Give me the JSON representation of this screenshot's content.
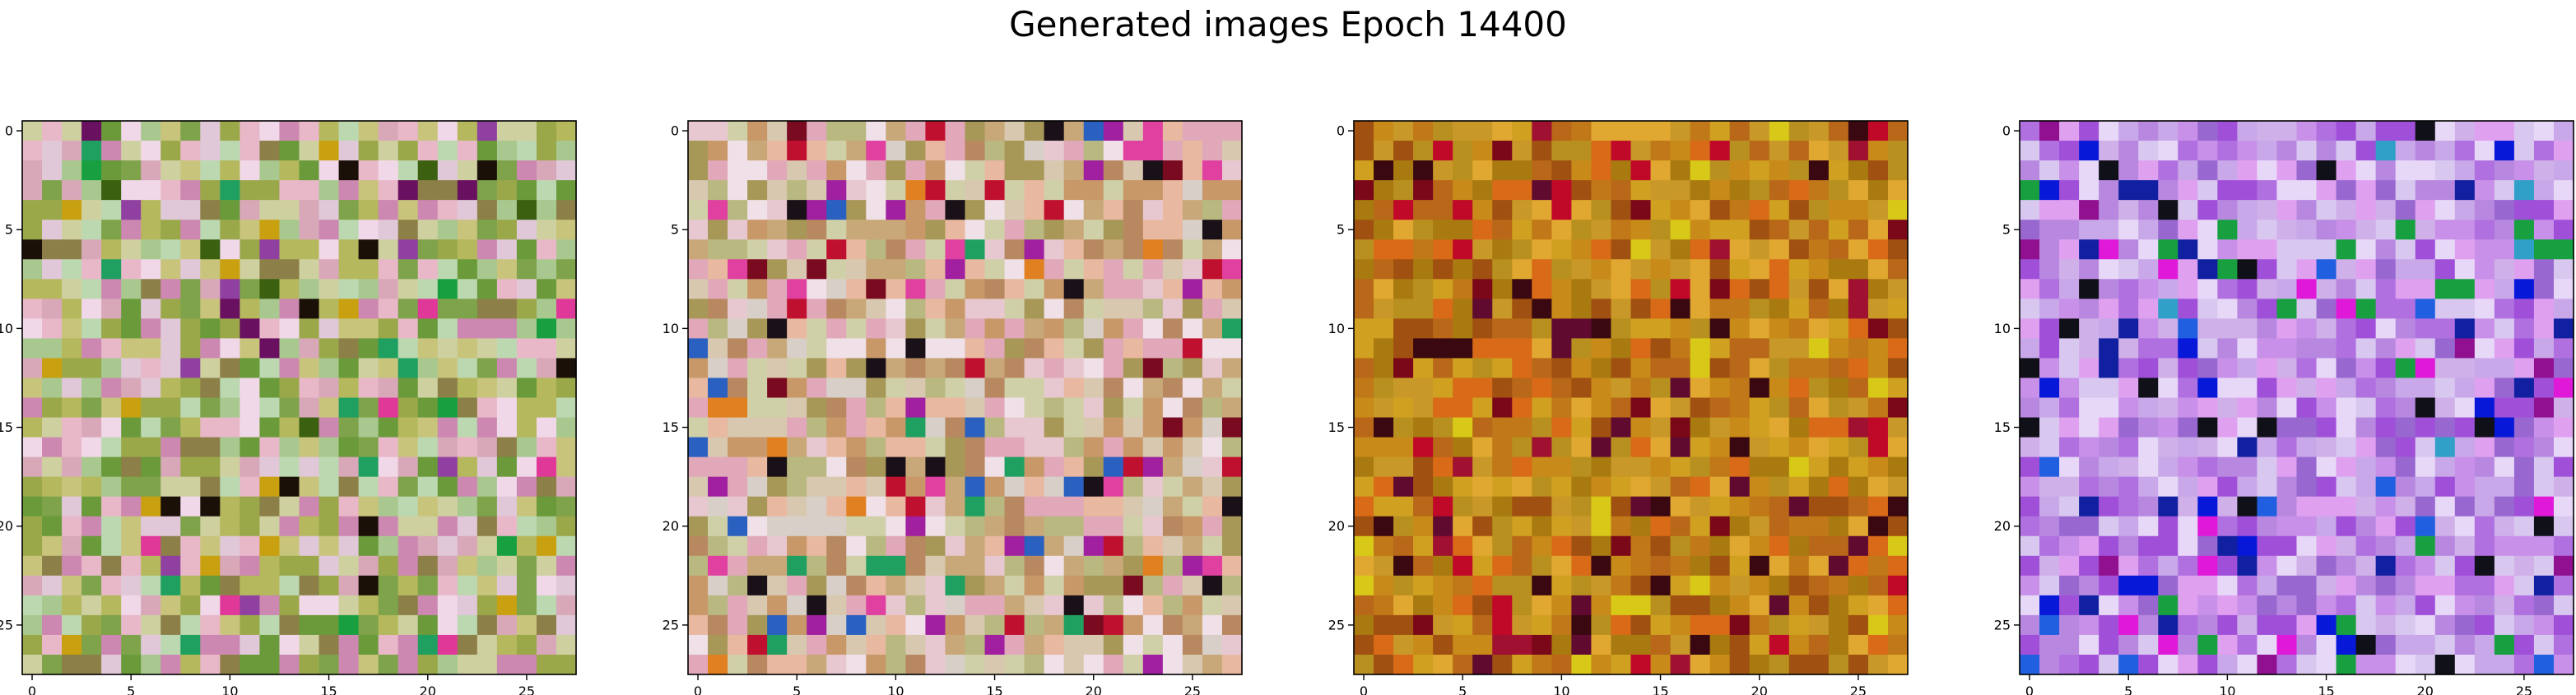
{
  "figure": {
    "suptitle": "Generated images Epoch 14400"
  },
  "chart_data": [
    {
      "type": "heatmap",
      "description_kind": "image",
      "grid_size": [
        28,
        28
      ],
      "x_ticks": [
        "0",
        "5",
        "10",
        "15",
        "20",
        "25"
      ],
      "y_ticks": [
        "0",
        "5",
        "10",
        "15",
        "20",
        "25"
      ],
      "xlim": [
        -0.5,
        27.5
      ],
      "ylim": [
        27.5,
        -0.5
      ],
      "palette": [
        "#b5b85c",
        "#9aa84a",
        "#c8c47c",
        "#7ea34a",
        "#d8a8b8",
        "#e0c8d8",
        "#6a9a3a",
        "#cfd0a0",
        "#e8b8c8",
        "#a8c890",
        "#cc88b0",
        "#f0d8e8",
        "#8c8048",
        "#bcd8b0"
      ],
      "accents": [
        "#1a1008",
        "#3a6010",
        "#18a040",
        "#e03898",
        "#6a1060",
        "#20a060",
        "#9040a0",
        "#c8a010"
      ],
      "accent_rate": 0.09,
      "seed": 11
    },
    {
      "type": "heatmap",
      "description_kind": "image",
      "grid_size": [
        28,
        28
      ],
      "x_ticks": [
        "0",
        "5",
        "10",
        "15",
        "20",
        "25"
      ],
      "y_ticks": [
        "0",
        "5",
        "10",
        "15",
        "20",
        "25"
      ],
      "xlim": [
        -0.5,
        27.5
      ],
      "ylim": [
        27.5,
        -0.5
      ],
      "palette": [
        "#d8c8b0",
        "#c8a878",
        "#e8c8d0",
        "#a89858",
        "#d8d0c8",
        "#e0a8b8",
        "#b8b880",
        "#f0e0e8",
        "#c89868",
        "#e8b8a0",
        "#d0d0a8",
        "#b88860"
      ],
      "accents": [
        "#c01030",
        "#7a0a20",
        "#1a1018",
        "#2a60c0",
        "#e040a0",
        "#20a060",
        "#a020a0",
        "#e08020"
      ],
      "accent_rate": 0.14,
      "seed": 22
    },
    {
      "type": "heatmap",
      "description_kind": "image",
      "grid_size": [
        28,
        28
      ],
      "x_ticks": [
        "0",
        "5",
        "10",
        "15",
        "20",
        "25"
      ],
      "y_ticks": [
        "0",
        "5",
        "10",
        "15",
        "20",
        "25"
      ],
      "xlim": [
        -0.5,
        27.5
      ],
      "ylim": [
        27.5,
        -0.5
      ],
      "palette": [
        "#c88a18",
        "#d0a020",
        "#b86818",
        "#a87a10",
        "#d86a18",
        "#c07818",
        "#e0a830",
        "#a05010",
        "#c89828",
        "#b89020"
      ],
      "accents": [
        "#7a0818",
        "#a01030",
        "#3a0810",
        "#c00828",
        "#600a30",
        "#d8c818"
      ],
      "accent_rate": 0.16,
      "seed": 33
    },
    {
      "type": "heatmap",
      "description_kind": "image",
      "grid_size": [
        28,
        28
      ],
      "x_ticks": [
        "0",
        "5",
        "10",
        "15",
        "20",
        "25"
      ],
      "y_ticks": [
        "0",
        "5",
        "10",
        "15",
        "20",
        "25"
      ],
      "xlim": [
        -0.5,
        27.5
      ],
      "ylim": [
        27.5,
        -0.5
      ],
      "palette": [
        "#c8a8e8",
        "#b070e0",
        "#d8c8f0",
        "#a050d8",
        "#e0a0f0",
        "#9868d0",
        "#c890e8",
        "#e8d8f8",
        "#b888e0",
        "#d0b0e8"
      ],
      "accents": [
        "#1020a0",
        "#0818d8",
        "#e018d8",
        "#2060e0",
        "#101018",
        "#30a0c8",
        "#901090",
        "#18a040"
      ],
      "accent_rate": 0.15,
      "seed": 44
    }
  ]
}
